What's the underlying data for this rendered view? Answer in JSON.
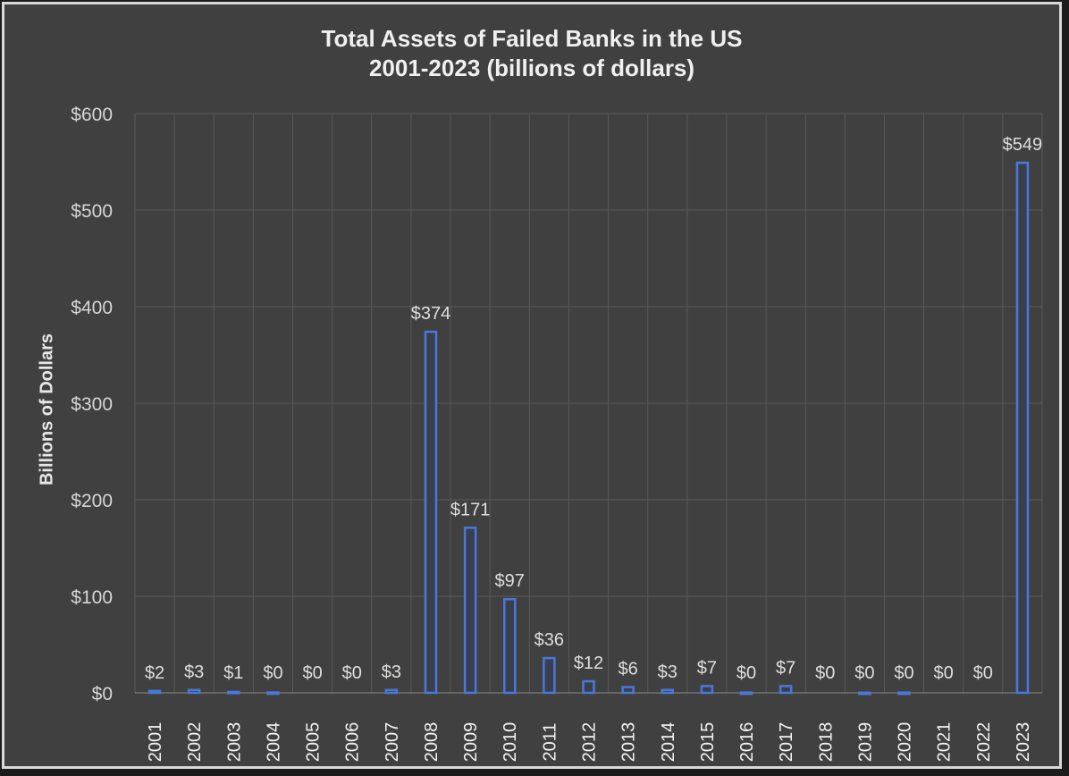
{
  "chart_data": {
    "type": "bar",
    "title": "Total Assets of Failed Banks in the US",
    "subtitle": "2001-2023 (billions of dollars)",
    "xlabel": "",
    "ylabel": "Billions of Dollars",
    "ylim": [
      0,
      600
    ],
    "yticks": [
      0,
      100,
      200,
      300,
      400,
      500,
      600
    ],
    "ytick_labels": [
      "$0",
      "$100",
      "$200",
      "$300",
      "$400",
      "$500",
      "$600"
    ],
    "categories": [
      "2001",
      "2002",
      "2003",
      "2004",
      "2005",
      "2006",
      "2007",
      "2008",
      "2009",
      "2010",
      "2011",
      "2012",
      "2013",
      "2014",
      "2015",
      "2016",
      "2017",
      "2018",
      "2019",
      "2020",
      "2021",
      "2022",
      "2023"
    ],
    "values": [
      2,
      3,
      1,
      0.4,
      0,
      0,
      3,
      374,
      171,
      97,
      36,
      12,
      6,
      3,
      7,
      0.3,
      7,
      0,
      0.2,
      0.3,
      0,
      0,
      549
    ],
    "data_labels": [
      "$2",
      "$3",
      "$1",
      "$0",
      "$0",
      "$0",
      "$3",
      "$374",
      "$171",
      "$97",
      "$36",
      "$12",
      "$6",
      "$3",
      "$7",
      "$0",
      "$7",
      "$0",
      "$0",
      "$0",
      "$0",
      "$0",
      "$549"
    ],
    "grid": true,
    "legend": "none",
    "bar_color": "#4a78d8",
    "bar_fill": "#3a3f4e"
  }
}
